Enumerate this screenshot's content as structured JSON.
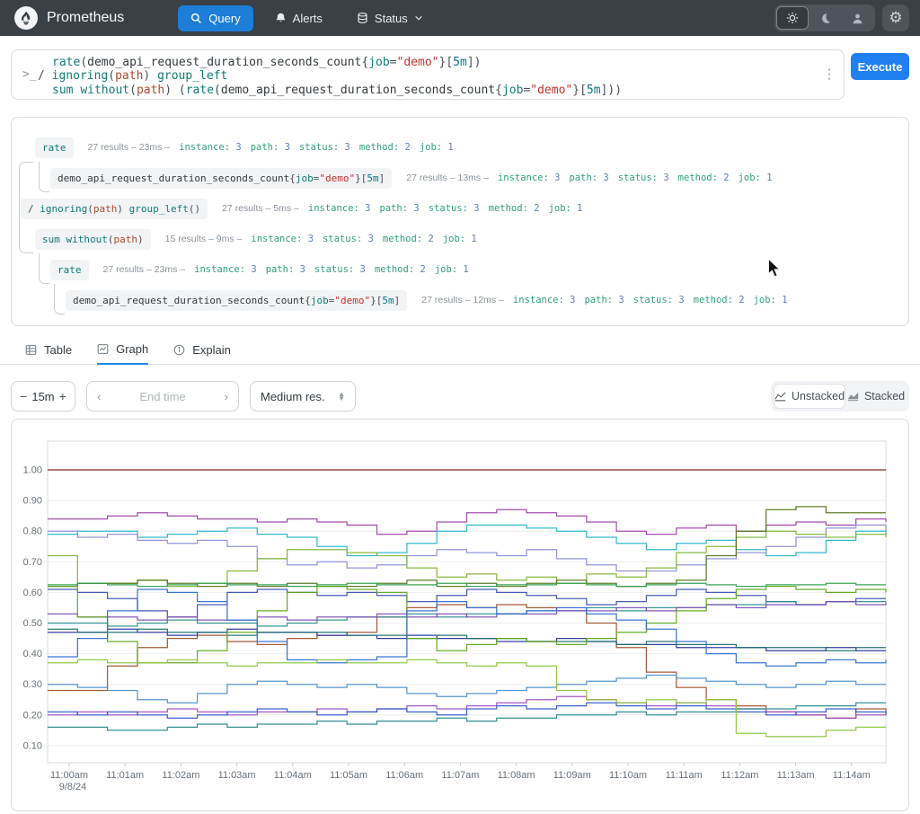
{
  "nav": {
    "brand": "Prometheus",
    "query_label": "Query",
    "alerts_label": "Alerts",
    "status_label": "Status"
  },
  "query": {
    "prompt": ">_",
    "kebab": "⋮",
    "execute_label": "Execute",
    "lines": [
      {
        "indent": true,
        "tokens": [
          [
            "fn",
            "rate"
          ],
          [
            "p",
            "("
          ],
          [
            "metric",
            "demo_api_request_duration_seconds_count"
          ],
          [
            "p",
            "{"
          ],
          [
            "label",
            "job"
          ],
          [
            "op",
            "="
          ],
          [
            "str",
            "\"demo\""
          ],
          [
            "p",
            "}"
          ],
          [
            "p",
            "["
          ],
          [
            "dur",
            "5m"
          ],
          [
            "p",
            "]"
          ],
          [
            "p",
            ")"
          ]
        ]
      },
      {
        "indent": false,
        "tokens": [
          [
            "op",
            "/ "
          ],
          [
            "fn",
            "ignoring"
          ],
          [
            "p",
            "("
          ],
          [
            "lblval",
            "path"
          ],
          [
            "p",
            ")"
          ],
          [
            "op",
            " "
          ],
          [
            "fn",
            "group_left"
          ]
        ]
      },
      {
        "indent": true,
        "tokens": [
          [
            "fn",
            "sum"
          ],
          [
            "op",
            " "
          ],
          [
            "fn",
            "without"
          ],
          [
            "p",
            "("
          ],
          [
            "lblval",
            "path"
          ],
          [
            "p",
            ")"
          ],
          [
            "op",
            " "
          ],
          [
            "p",
            "("
          ],
          [
            "fn",
            "rate"
          ],
          [
            "p",
            "("
          ],
          [
            "metric",
            "demo_api_request_duration_seconds_count"
          ],
          [
            "p",
            "{"
          ],
          [
            "label",
            "job"
          ],
          [
            "op",
            "="
          ],
          [
            "str",
            "\"demo\""
          ],
          [
            "p",
            "}"
          ],
          [
            "p",
            "["
          ],
          [
            "dur",
            "5m"
          ],
          [
            "p",
            "]"
          ],
          [
            "p",
            ")"
          ],
          [
            "p",
            ")"
          ]
        ]
      }
    ]
  },
  "tree": {
    "rows": [
      {
        "indent": 1,
        "tokens": [
          [
            "fn",
            "rate"
          ]
        ],
        "results": "27 results",
        "duration": "23ms",
        "labels": [
          [
            "instance",
            "3"
          ],
          [
            "path",
            "3"
          ],
          [
            "status",
            "3"
          ],
          [
            "method",
            "2"
          ],
          [
            "job",
            "1"
          ]
        ]
      },
      {
        "indent": 2,
        "tokens": [
          [
            "metric",
            "demo_api_request_duration_seconds_count"
          ],
          [
            "p",
            "{"
          ],
          [
            "label",
            "job"
          ],
          [
            "op",
            "="
          ],
          [
            "str",
            "\"demo\""
          ],
          [
            "p",
            "}"
          ],
          [
            "p",
            "["
          ],
          [
            "dur",
            "5m"
          ],
          [
            "p",
            "]"
          ]
        ],
        "results": "27 results",
        "duration": "13ms",
        "labels": [
          [
            "instance",
            "3"
          ],
          [
            "path",
            "3"
          ],
          [
            "status",
            "3"
          ],
          [
            "method",
            "2"
          ],
          [
            "job",
            "1"
          ]
        ]
      },
      {
        "indent": 0,
        "tokens": [
          [
            "op",
            "/ "
          ],
          [
            "fn",
            "ignoring"
          ],
          [
            "p",
            "("
          ],
          [
            "lblval",
            "path"
          ],
          [
            "p",
            ")"
          ],
          [
            "op",
            " "
          ],
          [
            "fn",
            "group_left"
          ],
          [
            "p",
            "()"
          ]
        ],
        "results": "27 results",
        "duration": "5ms",
        "labels": [
          [
            "instance",
            "3"
          ],
          [
            "path",
            "3"
          ],
          [
            "status",
            "3"
          ],
          [
            "method",
            "2"
          ],
          [
            "job",
            "1"
          ]
        ]
      },
      {
        "indent": 1,
        "tokens": [
          [
            "fn",
            "sum"
          ],
          [
            "op",
            " "
          ],
          [
            "fn",
            "without"
          ],
          [
            "p",
            "("
          ],
          [
            "lblval",
            "path"
          ],
          [
            "p",
            ")"
          ]
        ],
        "results": "15 results",
        "duration": "9ms",
        "labels": [
          [
            "instance",
            "3"
          ],
          [
            "status",
            "3"
          ],
          [
            "method",
            "2"
          ],
          [
            "job",
            "1"
          ]
        ]
      },
      {
        "indent": 2,
        "tokens": [
          [
            "fn",
            "rate"
          ]
        ],
        "results": "27 results",
        "duration": "23ms",
        "labels": [
          [
            "instance",
            "3"
          ],
          [
            "path",
            "3"
          ],
          [
            "status",
            "3"
          ],
          [
            "method",
            "2"
          ],
          [
            "job",
            "1"
          ]
        ]
      },
      {
        "indent": 3,
        "tokens": [
          [
            "metric",
            "demo_api_request_duration_seconds_count"
          ],
          [
            "p",
            "{"
          ],
          [
            "label",
            "job"
          ],
          [
            "op",
            "="
          ],
          [
            "str",
            "\"demo\""
          ],
          [
            "p",
            "}"
          ],
          [
            "p",
            "["
          ],
          [
            "dur",
            "5m"
          ],
          [
            "p",
            "]"
          ]
        ],
        "results": "27 results",
        "duration": "12ms",
        "labels": [
          [
            "instance",
            "3"
          ],
          [
            "path",
            "3"
          ],
          [
            "status",
            "3"
          ],
          [
            "method",
            "2"
          ],
          [
            "job",
            "1"
          ]
        ]
      }
    ],
    "separator": "–"
  },
  "tabs": [
    {
      "label": "Table",
      "active": false
    },
    {
      "label": "Graph",
      "active": true
    },
    {
      "label": "Explain",
      "active": false
    }
  ],
  "controls": {
    "minus": "−",
    "plus": "+",
    "range": "15m",
    "prev": "‹",
    "next": "›",
    "end_time_placeholder": "End time",
    "resolution": "Medium res.",
    "unstacked": "Unstacked",
    "stacked": "Stacked"
  },
  "chart_data": {
    "type": "line",
    "step": true,
    "grid": "horizontal",
    "ylim": [
      0.04,
      1.09
    ],
    "y_ticks": [
      "1.00",
      "0.90",
      "0.80",
      "0.70",
      "0.60",
      "0.50",
      "0.40",
      "0.30",
      "0.20",
      "0.10"
    ],
    "x_ticks": [
      "11:00am",
      "11:01am",
      "11:02am",
      "11:03am",
      "11:04am",
      "11:05am",
      "11:06am",
      "11:07am",
      "11:08am",
      "11:09am",
      "11:10am",
      "11:11am",
      "11:12am",
      "11:13am",
      "11:14am"
    ],
    "x_date": "9/8/24",
    "series": [
      {
        "color": "#a044a8",
        "values": [
          0.84,
          0.84,
          0.85,
          0.86,
          0.85,
          0.84,
          0.84,
          0.83,
          0.84,
          0.83,
          0.82,
          0.79,
          0.8,
          0.83,
          0.86,
          0.87,
          0.86,
          0.85,
          0.83,
          0.8,
          0.79,
          0.81,
          0.82,
          0.8,
          0.82,
          0.83,
          0.82,
          0.84,
          0.83
        ]
      },
      {
        "color": "#27b5c9",
        "values": [
          0.79,
          0.8,
          0.8,
          0.78,
          0.79,
          0.8,
          0.81,
          0.79,
          0.78,
          0.75,
          0.72,
          0.73,
          0.76,
          0.8,
          0.82,
          0.82,
          0.81,
          0.8,
          0.78,
          0.76,
          0.74,
          0.76,
          0.77,
          0.74,
          0.72,
          0.73,
          0.77,
          0.8,
          0.79
        ]
      },
      {
        "color": "#8d8fd6",
        "values": [
          0.8,
          0.78,
          0.79,
          0.77,
          0.76,
          0.77,
          0.75,
          0.71,
          0.69,
          0.7,
          0.68,
          0.69,
          0.72,
          0.74,
          0.73,
          0.72,
          0.74,
          0.71,
          0.69,
          0.67,
          0.67,
          0.69,
          0.71,
          0.73,
          0.75,
          0.78,
          0.81,
          0.82,
          0.8
        ]
      },
      {
        "color": "#82b534",
        "values": [
          0.72,
          0.63,
          0.63,
          0.64,
          0.62,
          0.63,
          0.67,
          0.71,
          0.74,
          0.74,
          0.73,
          0.72,
          0.68,
          0.65,
          0.66,
          0.64,
          0.65,
          0.63,
          0.66,
          0.65,
          0.68,
          0.73,
          0.75,
          0.78,
          0.8,
          0.79,
          0.78,
          0.79,
          0.78
        ]
      },
      {
        "color": "#55761f",
        "values": [
          0.62,
          0.63,
          0.63,
          0.64,
          0.63,
          0.62,
          0.63,
          0.62,
          0.63,
          0.62,
          0.62,
          0.63,
          0.64,
          0.62,
          0.63,
          0.62,
          0.63,
          0.64,
          0.63,
          0.62,
          0.63,
          0.64,
          0.72,
          0.8,
          0.87,
          0.88,
          0.86,
          0.86,
          0.86
        ]
      },
      {
        "color": "#2f9e4f",
        "values": [
          0.625,
          0.63,
          0.625,
          0.62,
          0.625,
          0.63,
          0.625,
          0.625,
          0.62,
          0.625,
          0.63,
          0.625,
          0.625,
          0.63,
          0.62,
          0.625,
          0.625,
          0.63,
          0.625,
          0.62,
          0.625,
          0.63,
          0.625,
          0.62,
          0.625,
          0.625,
          0.63,
          0.625,
          0.625
        ]
      },
      {
        "color": "#3f51b5",
        "values": [
          0.61,
          0.6,
          0.58,
          0.54,
          0.52,
          0.56,
          0.6,
          0.61,
          0.6,
          0.59,
          0.6,
          0.59,
          0.57,
          0.59,
          0.61,
          0.6,
          0.59,
          0.58,
          0.56,
          0.57,
          0.59,
          0.61,
          0.6,
          0.59,
          0.57,
          0.56,
          0.57,
          0.58,
          0.58
        ]
      },
      {
        "color": "#a0522d",
        "values": [
          0.28,
          0.28,
          0.36,
          0.42,
          0.45,
          0.46,
          0.44,
          0.43,
          0.45,
          0.46,
          0.47,
          0.52,
          0.55,
          0.56,
          0.55,
          0.56,
          0.55,
          0.54,
          0.5,
          0.42,
          0.34,
          0.29,
          0.25,
          0.23,
          0.21,
          0.2,
          0.19,
          0.22,
          0.21
        ]
      },
      {
        "color": "#2d8f8f",
        "values": [
          0.5,
          0.5,
          0.49,
          0.5,
          0.51,
          0.5,
          0.5,
          0.49,
          0.5,
          0.51,
          0.52,
          0.52,
          0.53,
          0.52,
          0.53,
          0.53,
          0.54,
          0.54,
          0.55,
          0.54,
          0.55,
          0.55,
          0.56,
          0.56,
          0.57,
          0.56,
          0.57,
          0.57,
          0.57
        ]
      },
      {
        "color": "#2b35a0",
        "values": [
          0.47,
          0.47,
          0.48,
          0.47,
          0.46,
          0.47,
          0.48,
          0.47,
          0.47,
          0.46,
          0.46,
          0.45,
          0.46,
          0.45,
          0.45,
          0.44,
          0.44,
          0.45,
          0.44,
          0.43,
          0.43,
          0.42,
          0.42,
          0.42,
          0.41,
          0.41,
          0.42,
          0.41,
          0.41
        ]
      },
      {
        "color": "#7a4fb5",
        "values": [
          0.53,
          0.52,
          0.52,
          0.51,
          0.52,
          0.51,
          0.51,
          0.52,
          0.51,
          0.52,
          0.52,
          0.53,
          0.52,
          0.53,
          0.52,
          0.53,
          0.53,
          0.54,
          0.54,
          0.55,
          0.54,
          0.55,
          0.56,
          0.55,
          0.56,
          0.56,
          0.57,
          0.56,
          0.57
        ]
      },
      {
        "color": "#1f6f6f",
        "values": [
          0.48,
          0.47,
          0.47,
          0.48,
          0.47,
          0.47,
          0.46,
          0.47,
          0.47,
          0.47,
          0.46,
          0.46,
          0.45,
          0.46,
          0.45,
          0.45,
          0.44,
          0.44,
          0.44,
          0.43,
          0.44,
          0.43,
          0.43,
          0.42,
          0.42,
          0.42,
          0.41,
          0.42,
          0.42
        ]
      },
      {
        "color": "#5fa81e",
        "values": [
          0.62,
          0.52,
          0.44,
          0.37,
          0.37,
          0.41,
          0.47,
          0.54,
          0.6,
          0.62,
          0.61,
          0.6,
          0.45,
          0.41,
          0.43,
          0.45,
          0.44,
          0.43,
          0.45,
          0.47,
          0.5,
          0.54,
          0.58,
          0.61,
          0.62,
          0.61,
          0.6,
          0.61,
          0.6
        ]
      },
      {
        "color": "#2f6fd0",
        "values": [
          0.39,
          0.45,
          0.54,
          0.61,
          0.6,
          0.57,
          0.51,
          0.44,
          0.38,
          0.37,
          0.38,
          0.39,
          0.54,
          0.57,
          0.55,
          0.53,
          0.54,
          0.55,
          0.53,
          0.51,
          0.48,
          0.44,
          0.4,
          0.37,
          0.36,
          0.37,
          0.38,
          0.37,
          0.38
        ]
      },
      {
        "color": "#4d8fcc",
        "values": [
          0.3,
          0.29,
          0.28,
          0.25,
          0.24,
          0.27,
          0.3,
          0.31,
          0.3,
          0.29,
          0.3,
          0.29,
          0.27,
          0.26,
          0.27,
          0.28,
          0.29,
          0.3,
          0.31,
          0.32,
          0.33,
          0.32,
          0.31,
          0.3,
          0.29,
          0.3,
          0.31,
          0.3,
          0.3
        ]
      },
      {
        "color": "#a34fc2",
        "values": [
          0.2,
          0.21,
          0.2,
          0.21,
          0.22,
          0.21,
          0.2,
          0.21,
          0.21,
          0.22,
          0.21,
          0.22,
          0.23,
          0.22,
          0.23,
          0.24,
          0.25,
          0.26,
          0.25,
          0.24,
          0.23,
          0.24,
          0.23,
          0.22,
          0.21,
          0.2,
          0.19,
          0.2,
          0.21
        ]
      },
      {
        "color": "#3558c8",
        "values": [
          0.21,
          0.2,
          0.21,
          0.2,
          0.19,
          0.2,
          0.21,
          0.22,
          0.21,
          0.2,
          0.21,
          0.22,
          0.21,
          0.2,
          0.22,
          0.23,
          0.22,
          0.23,
          0.24,
          0.23,
          0.22,
          0.23,
          0.22,
          0.21,
          0.2,
          0.21,
          0.22,
          0.21,
          0.2
        ]
      },
      {
        "color": "#2b8a8a",
        "values": [
          0.16,
          0.16,
          0.15,
          0.15,
          0.16,
          0.17,
          0.16,
          0.17,
          0.17,
          0.18,
          0.17,
          0.18,
          0.18,
          0.19,
          0.18,
          0.19,
          0.19,
          0.2,
          0.2,
          0.21,
          0.2,
          0.21,
          0.21,
          0.22,
          0.22,
          0.23,
          0.23,
          0.24,
          0.24
        ]
      },
      {
        "color": "#8ec63f",
        "values": [
          0.37,
          0.38,
          0.37,
          0.37,
          0.38,
          0.37,
          0.36,
          0.37,
          0.37,
          0.38,
          0.37,
          0.37,
          0.38,
          0.37,
          0.36,
          0.37,
          0.36,
          0.28,
          0.25,
          0.24,
          0.25,
          0.24,
          0.25,
          0.14,
          0.13,
          0.13,
          0.15,
          0.16,
          0.16
        ]
      },
      {
        "color": "#7b1d1d",
        "values": [
          1,
          1,
          1,
          1,
          1,
          1,
          1,
          1,
          1,
          1,
          1,
          1,
          1,
          1,
          1,
          1,
          1,
          1,
          1,
          1,
          1,
          1,
          1,
          1,
          1,
          1,
          1,
          1,
          1
        ]
      }
    ]
  }
}
